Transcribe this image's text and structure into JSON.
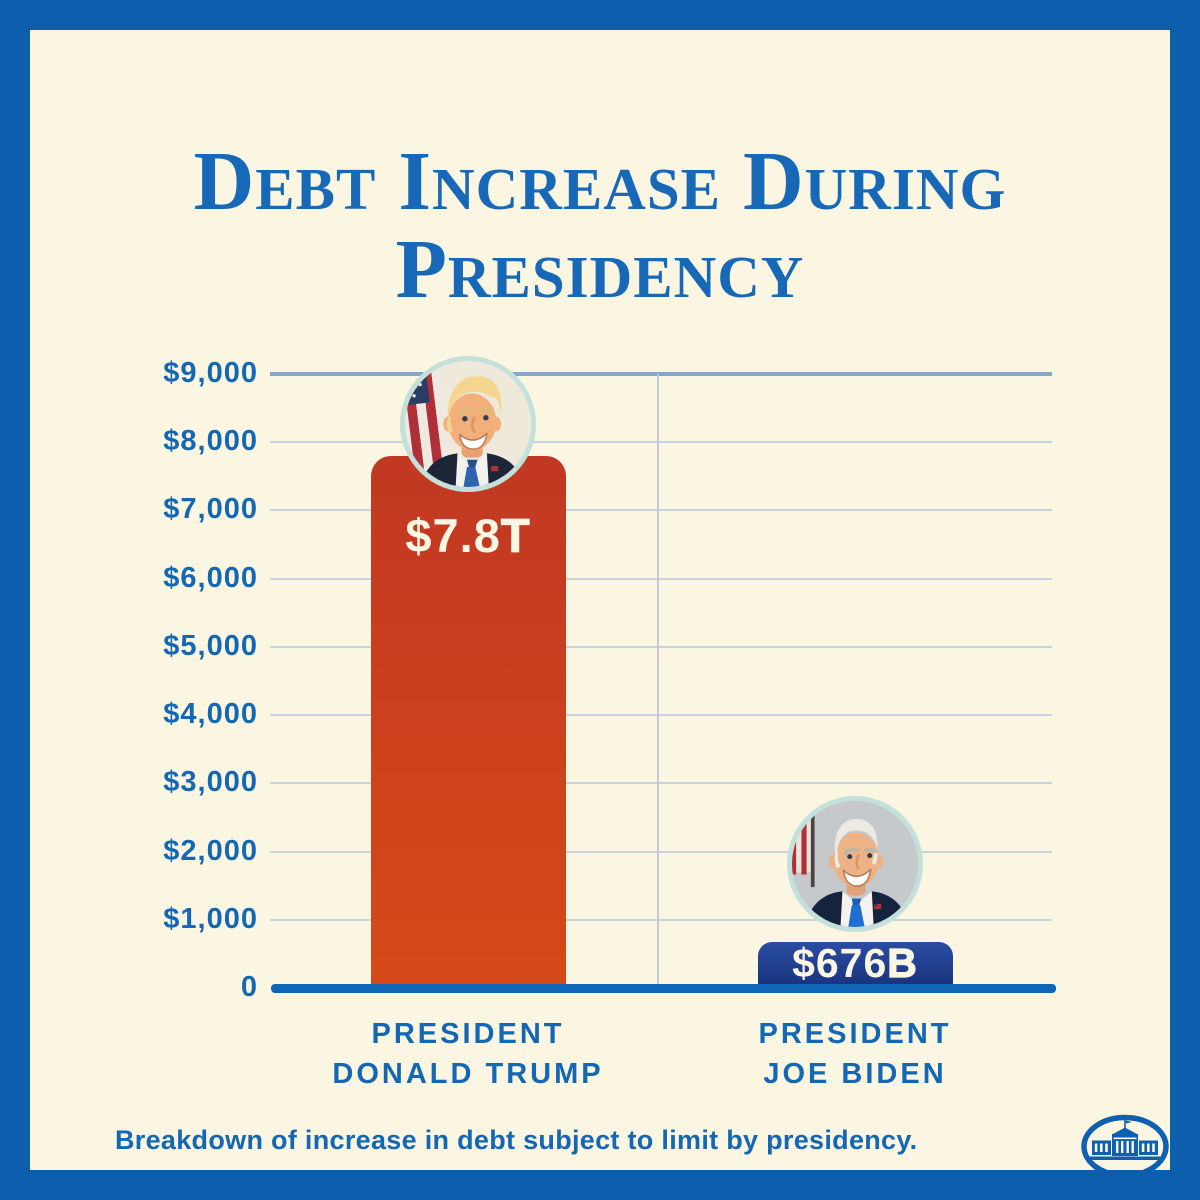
{
  "header": {
    "title_line1": "Debt Increase During",
    "title_line2": "Presidency"
  },
  "footer": {
    "caption": "Breakdown of increase in debt subject to limit by presidency."
  },
  "icons": {
    "logo": "white-house-logo",
    "portrait_1": "donald-trump-photo",
    "portrait_2": "joe-biden-photo"
  },
  "chart_data": {
    "type": "bar",
    "title": "Debt Increase During Presidency",
    "unit": "billions of dollars",
    "categories": [
      "President Donald Trump",
      "President Joe Biden"
    ],
    "values": [
      7800,
      676
    ],
    "bar_value_labels": [
      {
        "main": "$7.8",
        "suffix": "T"
      },
      {
        "main": "$676",
        "suffix": "B"
      }
    ],
    "x_tick_lines": [
      [
        "PRESIDENT",
        "DONALD TRUMP"
      ],
      [
        "PRESIDENT",
        "JOE BIDEN"
      ]
    ],
    "yticks": [
      {
        "label": "$9,000",
        "value": 9000
      },
      {
        "label": "$8,000",
        "value": 8000
      },
      {
        "label": "$7,000",
        "value": 7000
      },
      {
        "label": "$6,000",
        "value": 6000
      },
      {
        "label": "$5,000",
        "value": 5000
      },
      {
        "label": "$4,000",
        "value": 4000
      },
      {
        "label": "$3,000",
        "value": 3000
      },
      {
        "label": "$2,000",
        "value": 2000
      },
      {
        "label": "$1,000",
        "value": 1000
      },
      {
        "label": "0",
        "value": 0
      }
    ],
    "ylim": [
      0,
      9000
    ],
    "grid": true,
    "legend_position": "none",
    "bar_colors": [
      {
        "top": "#C13823",
        "bottom": "#D64917"
      },
      {
        "top": "#2A4DA3",
        "bottom": "#173077"
      }
    ],
    "caption": "Breakdown of increase in debt subject to limit by presidency.",
    "accent_colors": {
      "text_blue": "#1467B4",
      "title_blue": "#1769B8",
      "frame_blue": "#0D5FAD",
      "background_cream": "#FBF6E2",
      "baseline_blue": "#0F66B6",
      "avatar_ring": "#C3E0DA"
    }
  }
}
